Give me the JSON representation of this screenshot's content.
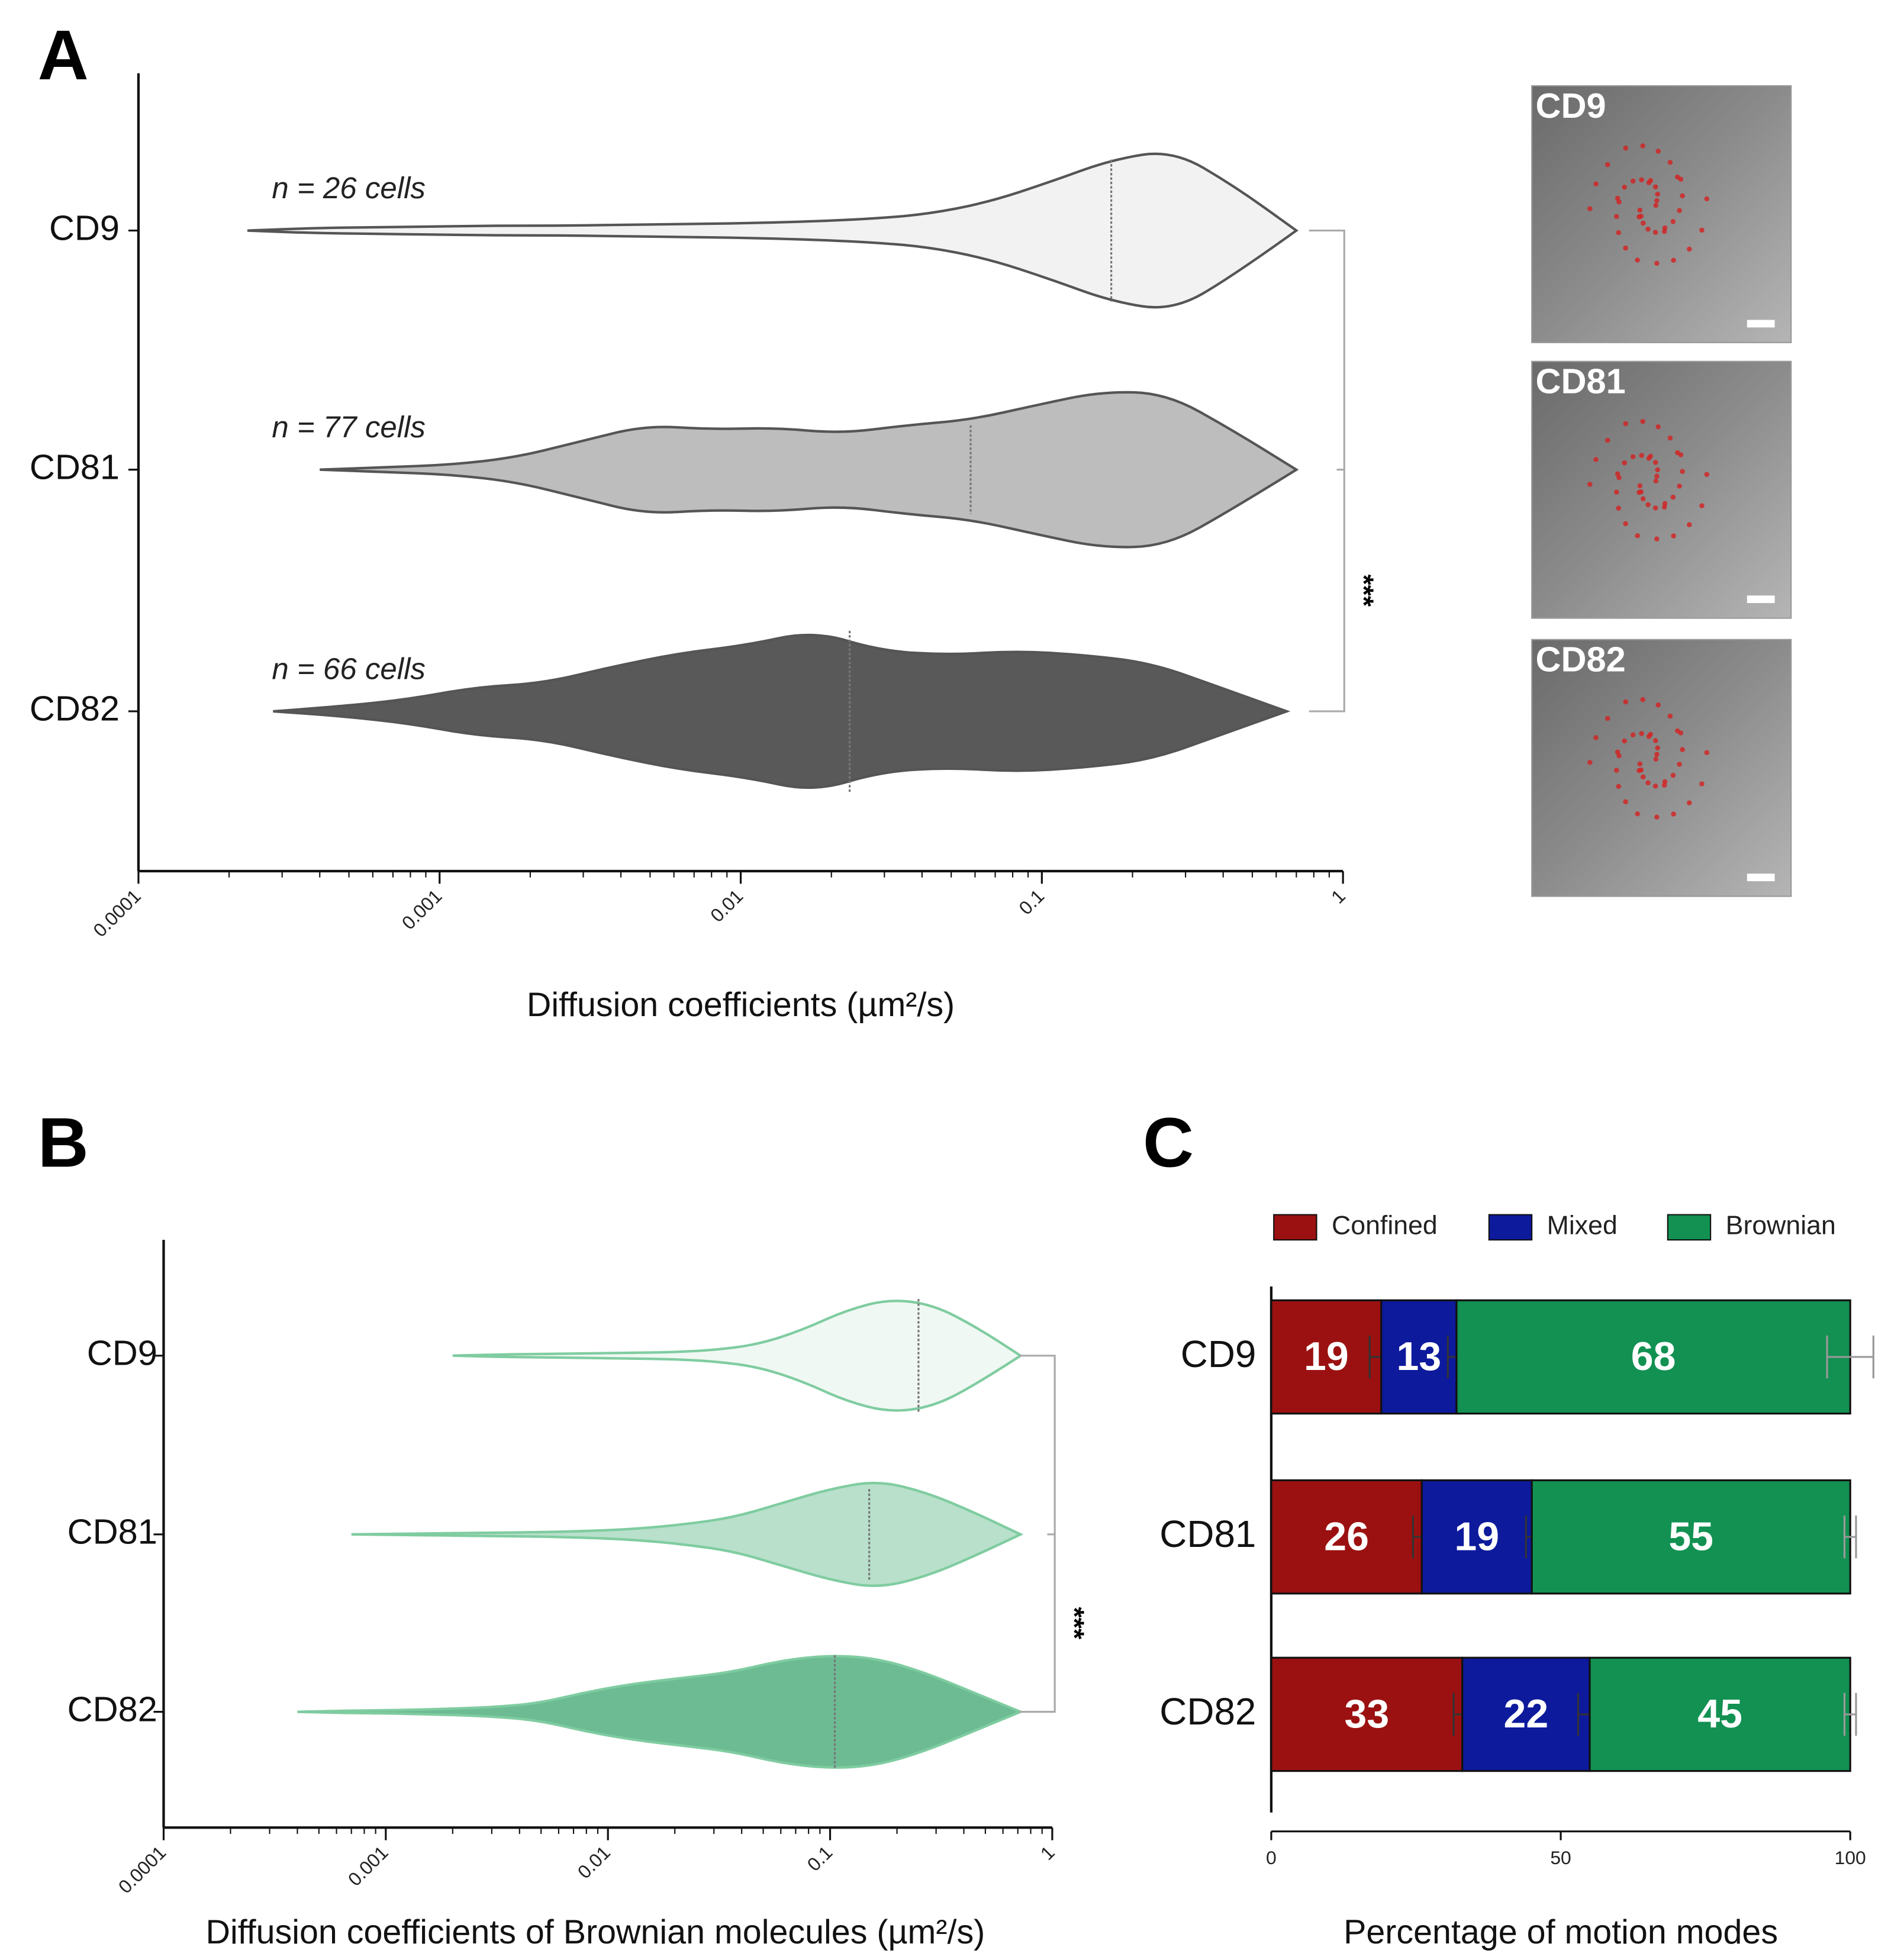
{
  "chart_data": [
    {
      "type": "violin",
      "panel": "A",
      "xlabel": "Diffusion coefficients (µm²/s)",
      "log_x": true,
      "xlim": [
        0.0001,
        1
      ],
      "xticks": [
        0.0001,
        0.001,
        0.01,
        0.1,
        1
      ],
      "significance": "***",
      "edge_color": "#555555",
      "groups": [
        {
          "name": "CD9",
          "annotation": "n = 26 cells",
          "color": "#f2f2f2",
          "min": 0.00023,
          "median": 0.17,
          "max": 0.7,
          "density": [
            0.03,
            0.04,
            0.05,
            0.06,
            0.06,
            0.07,
            0.08,
            0.09,
            0.11,
            0.14,
            0.2,
            0.35,
            0.6,
            0.88,
            1,
            0.55
          ]
        },
        {
          "name": "CD81",
          "annotation": "n = 77 cells",
          "color": "#bdbdbd",
          "min": 0.0004,
          "median": 0.058,
          "max": 0.7,
          "density": [
            0.03,
            0.06,
            0.15,
            0.35,
            0.55,
            0.5,
            0.52,
            0.45,
            0.55,
            0.62,
            0.8,
            0.97,
            0.95,
            0.5
          ]
        },
        {
          "name": "CD82",
          "annotation": "n = 66 cells",
          "color": "#595959",
          "min": 0.00028,
          "median": 0.023,
          "max": 0.65,
          "density": [
            0.06,
            0.15,
            0.3,
            0.35,
            0.55,
            0.72,
            0.82,
            1,
            0.75,
            0.7,
            0.75,
            0.7,
            0.6,
            0.3
          ]
        }
      ]
    },
    {
      "type": "violin",
      "panel": "B",
      "xlabel": "Diffusion coefficients of Brownian molecules (µm²/s)",
      "log_x": true,
      "xlim": [
        0.0001,
        1
      ],
      "xticks": [
        0.0001,
        0.001,
        0.01,
        0.1,
        1
      ],
      "significance": "***",
      "edge_color": "#7fcca0",
      "groups": [
        {
          "name": "CD9",
          "color": "#f0f8f3",
          "min": 0.002,
          "median": 0.25,
          "max": 0.72,
          "density": [
            0.02,
            0.03,
            0.04,
            0.05,
            0.06,
            0.1,
            0.2,
            0.45,
            0.8,
            1,
            0.9,
            0.5
          ]
        },
        {
          "name": "CD81",
          "color": "#b8e0cb",
          "min": 0.0007,
          "median": 0.15,
          "max": 0.72,
          "density": [
            0.01,
            0.02,
            0.03,
            0.04,
            0.06,
            0.1,
            0.18,
            0.3,
            0.55,
            0.8,
            0.95,
            0.75,
            0.4
          ]
        },
        {
          "name": "CD82",
          "color": "#6dbb93",
          "min": 0.0004,
          "median": 0.105,
          "max": 0.72,
          "density": [
            0.02,
            0.03,
            0.05,
            0.08,
            0.15,
            0.35,
            0.5,
            0.6,
            0.7,
            0.9,
            1,
            0.95,
            0.7,
            0.35
          ]
        }
      ]
    },
    {
      "type": "bar",
      "panel": "C",
      "orientation": "horizontal",
      "stacked": true,
      "legend": "top",
      "xlabel": "Percentage of motion modes",
      "xlim": [
        0,
        100
      ],
      "xticks": [
        0,
        50,
        100
      ],
      "categories": [
        "CD9",
        "CD81",
        "CD82"
      ],
      "series": [
        {
          "name": "Confined",
          "color": "#9b1111",
          "values": [
            19,
            26,
            33
          ],
          "errors": [
            2,
            1.5,
            1.5
          ]
        },
        {
          "name": "Mixed",
          "color": "#0d1a9c",
          "values": [
            13,
            19,
            22
          ],
          "errors": [
            1.5,
            1,
            2
          ]
        },
        {
          "name": "Brownian",
          "color": "#129152",
          "values": [
            68,
            55,
            45
          ],
          "errors": [
            4,
            1,
            1
          ]
        }
      ]
    }
  ],
  "micrographs": [
    "CD9",
    "CD81",
    "CD82"
  ]
}
